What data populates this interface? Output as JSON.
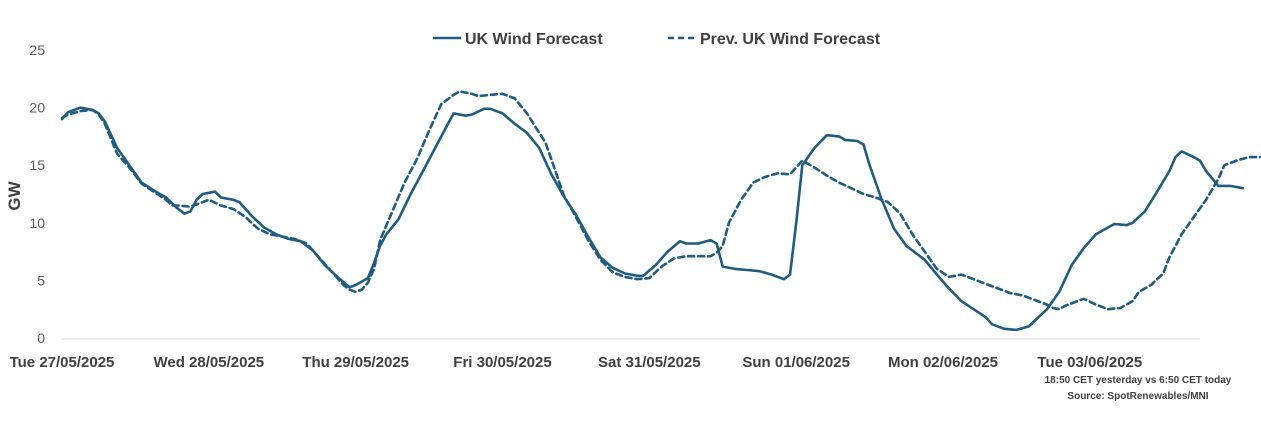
{
  "chart_data": {
    "type": "line",
    "ylabel": "GW",
    "xlabel": "",
    "ylim": [
      0,
      25
    ],
    "y_ticks": [
      0,
      5,
      10,
      15,
      20,
      25
    ],
    "grid": false,
    "legend_position": "top-center",
    "x_ticks": [
      {
        "label": "Tue 27/05/2025",
        "x": 0
      },
      {
        "label": "Wed 28/05/2025",
        "x": 24
      },
      {
        "label": "Thu 29/05/2025",
        "x": 48
      },
      {
        "label": "Fri 30/05/2025",
        "x": 72
      },
      {
        "label": "Sat 31/05/2025",
        "x": 96
      },
      {
        "label": "Sun 01/06/2025",
        "x": 120
      },
      {
        "label": "Mon 02/06/2025",
        "x": 144
      },
      {
        "label": "Tue 03/06/2025",
        "x": 168
      }
    ],
    "x_max": 185,
    "series": [
      {
        "name": "UK Wind Forecast",
        "color": "#1f5c80",
        "style": "solid",
        "points": [
          [
            0,
            19
          ],
          [
            1,
            19.6
          ],
          [
            3,
            20
          ],
          [
            5,
            19.8
          ],
          [
            6,
            19.5
          ],
          [
            7,
            18.8
          ],
          [
            9,
            16.5
          ],
          [
            11,
            15
          ],
          [
            13,
            13.5
          ],
          [
            15,
            12.8
          ],
          [
            17,
            12.2
          ],
          [
            19,
            11.2
          ],
          [
            20,
            10.8
          ],
          [
            21,
            11
          ],
          [
            22,
            12
          ],
          [
            23,
            12.5
          ],
          [
            25,
            12.7
          ],
          [
            26,
            12.2
          ],
          [
            28,
            12
          ],
          [
            29,
            11.8
          ],
          [
            31,
            10.6
          ],
          [
            33,
            9.6
          ],
          [
            35,
            9
          ],
          [
            37,
            8.6
          ],
          [
            39,
            8.4
          ],
          [
            41,
            7.6
          ],
          [
            43,
            6.3
          ],
          [
            45,
            5.3
          ],
          [
            47,
            4.4
          ],
          [
            48,
            4.6
          ],
          [
            50,
            5.2
          ],
          [
            51,
            6.5
          ],
          [
            52,
            8
          ],
          [
            53,
            9
          ],
          [
            55,
            10.3
          ],
          [
            57,
            12.5
          ],
          [
            59,
            14.5
          ],
          [
            61,
            16.5
          ],
          [
            63,
            18.5
          ],
          [
            64,
            19.5
          ],
          [
            66,
            19.3
          ],
          [
            67,
            19.4
          ],
          [
            69,
            19.9
          ],
          [
            70,
            19.9
          ],
          [
            72,
            19.5
          ],
          [
            74,
            18.6
          ],
          [
            76,
            17.8
          ],
          [
            78,
            16.5
          ],
          [
            80,
            14.2
          ],
          [
            82,
            12.3
          ],
          [
            84,
            10.7
          ],
          [
            86,
            8.8
          ],
          [
            88,
            7
          ],
          [
            90,
            6.1
          ],
          [
            92,
            5.6
          ],
          [
            94,
            5.4
          ],
          [
            95,
            5.4
          ],
          [
            97,
            6.3
          ],
          [
            99,
            7.5
          ],
          [
            101,
            8.4
          ],
          [
            102,
            8.2
          ],
          [
            104,
            8.2
          ],
          [
            106,
            8.5
          ],
          [
            107,
            8.2
          ],
          [
            108,
            6.2
          ],
          [
            110,
            6
          ],
          [
            112,
            5.9
          ],
          [
            114,
            5.8
          ],
          [
            116,
            5.5
          ],
          [
            118,
            5.1
          ],
          [
            119,
            5.5
          ],
          [
            120,
            10
          ],
          [
            121,
            15
          ],
          [
            123,
            16.5
          ],
          [
            125,
            17.6
          ],
          [
            127,
            17.5
          ],
          [
            128,
            17.2
          ],
          [
            130,
            17.1
          ],
          [
            131,
            16.8
          ],
          [
            132,
            15
          ],
          [
            134,
            12
          ],
          [
            136,
            9.5
          ],
          [
            138,
            8
          ],
          [
            140,
            7.2
          ],
          [
            141,
            6.8
          ],
          [
            143,
            5.5
          ],
          [
            145,
            4.3
          ],
          [
            147,
            3.2
          ],
          [
            149,
            2.5
          ],
          [
            151,
            1.8
          ],
          [
            152,
            1.2
          ],
          [
            154,
            0.8
          ],
          [
            156,
            0.7
          ],
          [
            158,
            1
          ],
          [
            159,
            1.5
          ],
          [
            161,
            2.5
          ],
          [
            163,
            4
          ],
          [
            165,
            6.3
          ],
          [
            167,
            7.8
          ],
          [
            169,
            9
          ],
          [
            171,
            9.6
          ],
          [
            172,
            9.9
          ],
          [
            174,
            9.8
          ],
          [
            175,
            10
          ],
          [
            177,
            11
          ],
          [
            179,
            12.7
          ],
          [
            181,
            14.5
          ],
          [
            182,
            15.7
          ],
          [
            183,
            16.2
          ],
          [
            185,
            15.7
          ],
          [
            186,
            15.4
          ],
          [
            187,
            14.5
          ],
          [
            189,
            13.2
          ],
          [
            191,
            13.2
          ],
          [
            193,
            13
          ]
        ]
      },
      {
        "name": "Prev. UK Wind Forecast",
        "color": "#1f5c80",
        "style": "dashed",
        "points": [
          [
            0,
            19.1
          ],
          [
            1,
            19.4
          ],
          [
            3,
            19.7
          ],
          [
            5,
            19.8
          ],
          [
            6,
            19.4
          ],
          [
            7,
            18.6
          ],
          [
            9,
            16
          ],
          [
            11,
            14.8
          ],
          [
            13,
            13.4
          ],
          [
            15,
            12.7
          ],
          [
            17,
            12
          ],
          [
            18,
            11.5
          ],
          [
            19,
            11.5
          ],
          [
            21,
            11.4
          ],
          [
            23,
            11.8
          ],
          [
            24,
            12
          ],
          [
            26,
            11.5
          ],
          [
            28,
            11.2
          ],
          [
            30,
            10.5
          ],
          [
            32,
            9.5
          ],
          [
            34,
            9
          ],
          [
            36,
            8.8
          ],
          [
            38,
            8.6
          ],
          [
            40,
            8.2
          ],
          [
            42,
            7
          ],
          [
            44,
            5.8
          ],
          [
            46,
            4.6
          ],
          [
            47,
            4.2
          ],
          [
            48,
            4
          ],
          [
            49,
            4.2
          ],
          [
            50,
            4.8
          ],
          [
            51,
            6
          ],
          [
            52,
            8.5
          ],
          [
            54,
            11
          ],
          [
            56,
            13.5
          ],
          [
            58,
            15.5
          ],
          [
            60,
            18
          ],
          [
            62,
            20.3
          ],
          [
            64,
            21.1
          ],
          [
            65,
            21.4
          ],
          [
            67,
            21.2
          ],
          [
            68,
            21
          ],
          [
            70,
            21.1
          ],
          [
            72,
            21.2
          ],
          [
            74,
            20.8
          ],
          [
            76,
            19.5
          ],
          [
            78,
            17.8
          ],
          [
            79,
            17
          ],
          [
            80,
            15.5
          ],
          [
            82,
            12.4
          ],
          [
            84,
            10.5
          ],
          [
            86,
            8.5
          ],
          [
            88,
            6.8
          ],
          [
            90,
            5.7
          ],
          [
            92,
            5.3
          ],
          [
            94,
            5.1
          ],
          [
            96,
            5.2
          ],
          [
            98,
            6.2
          ],
          [
            100,
            6.9
          ],
          [
            102,
            7.1
          ],
          [
            104,
            7.1
          ],
          [
            106,
            7.1
          ],
          [
            107,
            7.4
          ],
          [
            108,
            8
          ],
          [
            109,
            10
          ],
          [
            111,
            12
          ],
          [
            113,
            13.5
          ],
          [
            115,
            14
          ],
          [
            117,
            14.3
          ],
          [
            119,
            14.2
          ],
          [
            121,
            15.4
          ],
          [
            123,
            14.8
          ],
          [
            125,
            14.1
          ],
          [
            127,
            13.5
          ],
          [
            129,
            13
          ],
          [
            131,
            12.5
          ],
          [
            133,
            12.2
          ],
          [
            135,
            11.8
          ],
          [
            137,
            10.8
          ],
          [
            139,
            9
          ],
          [
            141,
            7.5
          ],
          [
            143,
            6
          ],
          [
            145,
            5.3
          ],
          [
            147,
            5.5
          ],
          [
            149,
            5.1
          ],
          [
            151,
            4.7
          ],
          [
            153,
            4.3
          ],
          [
            155,
            3.9
          ],
          [
            157,
            3.7
          ],
          [
            159,
            3.3
          ],
          [
            161,
            2.9
          ],
          [
            162,
            2.6
          ],
          [
            163,
            2.5
          ],
          [
            164,
            2.8
          ],
          [
            166,
            3.2
          ],
          [
            167,
            3.4
          ],
          [
            169,
            2.9
          ],
          [
            171,
            2.5
          ],
          [
            173,
            2.6
          ],
          [
            175,
            3.2
          ],
          [
            176,
            4
          ],
          [
            178,
            4.6
          ],
          [
            180,
            5.6
          ],
          [
            181,
            7
          ],
          [
            183,
            9
          ],
          [
            185,
            10.5
          ],
          [
            187,
            12
          ],
          [
            189,
            13.8
          ],
          [
            190,
            15
          ],
          [
            192,
            15.4
          ],
          [
            194,
            15.7
          ],
          [
            196,
            15.7
          ]
        ]
      }
    ]
  },
  "notes": {
    "line1": "18:50 CET yesterday vs  6:50 CET today",
    "line2": "Source: SpotRenewables/MNI"
  }
}
